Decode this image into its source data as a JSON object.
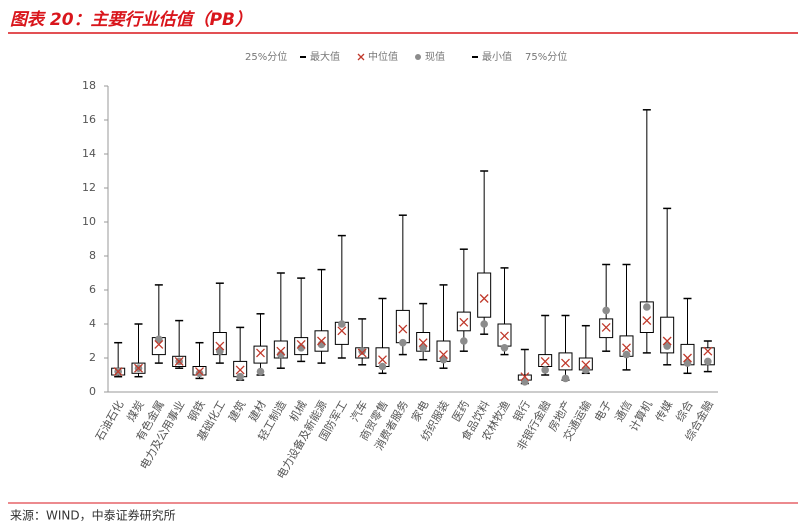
{
  "chart_data": {
    "type": "box",
    "title": "图表 20：主要行业估值（PB）",
    "source": "来源：WIND，中泰证券研究所",
    "categories": [
      "石油石化",
      "煤炭",
      "有色金属",
      "电力及公用事业",
      "钢铁",
      "基础化工",
      "建筑",
      "建材",
      "轻工制造",
      "机械",
      "电力设备及新能源",
      "国防军工",
      "汽车",
      "商贸零售",
      "消费者服务",
      "家电",
      "纺织服装",
      "医药",
      "食品饮料",
      "农林牧渔",
      "银行",
      "非银行金融",
      "房地产",
      "交通运输",
      "电子",
      "通信",
      "计算机",
      "传媒",
      "综合",
      "综合金融"
    ],
    "series": [
      {
        "name": "25%分位",
        "color": "#000000",
        "values": [
          1.0,
          1.1,
          2.2,
          1.5,
          1.0,
          2.2,
          0.9,
          1.7,
          2.0,
          2.2,
          2.4,
          2.8,
          2.0,
          1.5,
          2.9,
          2.4,
          1.8,
          3.6,
          4.4,
          2.7,
          0.7,
          1.5,
          1.3,
          1.3,
          3.2,
          2.1,
          3.5,
          2.3,
          1.6,
          1.6
        ]
      },
      {
        "name": "最大值",
        "color": "#000000",
        "values": [
          2.9,
          4.0,
          6.3,
          4.2,
          2.9,
          6.4,
          3.8,
          4.6,
          7.0,
          6.7,
          7.2,
          9.2,
          4.3,
          5.5,
          10.4,
          5.2,
          6.3,
          8.4,
          13.0,
          7.3,
          2.5,
          4.5,
          4.5,
          3.9,
          7.5,
          7.5,
          16.6,
          10.8,
          5.5,
          3.0
        ]
      },
      {
        "name": "中位值",
        "color": "#c0392b",
        "values": [
          1.2,
          1.4,
          2.8,
          1.8,
          1.2,
          2.7,
          1.3,
          2.3,
          2.4,
          2.8,
          3.0,
          3.6,
          2.3,
          1.9,
          3.7,
          2.9,
          2.2,
          4.1,
          5.5,
          3.3,
          0.9,
          1.8,
          1.7,
          1.6,
          3.8,
          2.6,
          4.2,
          3.0,
          2.0,
          2.4
        ]
      },
      {
        "name": "现值",
        "color": "#8c8c8c",
        "values": [
          1.2,
          1.4,
          3.1,
          1.8,
          1.1,
          2.4,
          0.9,
          1.2,
          2.2,
          2.6,
          2.8,
          4.0,
          2.4,
          1.5,
          2.9,
          2.6,
          1.9,
          3.0,
          4.0,
          2.6,
          0.6,
          1.3,
          0.8,
          1.3,
          4.8,
          2.2,
          5.0,
          2.7,
          1.7,
          1.8
        ]
      },
      {
        "name": "最小值",
        "color": "#000000",
        "values": [
          0.9,
          0.9,
          1.7,
          1.4,
          0.8,
          1.7,
          0.7,
          1.0,
          1.4,
          1.8,
          1.7,
          2.0,
          1.6,
          1.1,
          2.2,
          1.9,
          1.4,
          2.4,
          3.4,
          2.2,
          0.5,
          1.0,
          0.7,
          1.1,
          2.4,
          1.3,
          2.3,
          1.6,
          1.1,
          1.2
        ]
      },
      {
        "name": "75%分位",
        "color": "#000000",
        "values": [
          1.4,
          1.7,
          3.2,
          2.1,
          1.5,
          3.5,
          1.8,
          2.7,
          3.0,
          3.2,
          3.6,
          4.1,
          2.6,
          2.6,
          4.8,
          3.5,
          3.0,
          4.7,
          7.0,
          4.0,
          1.0,
          2.2,
          2.3,
          2.0,
          4.3,
          3.3,
          5.3,
          4.4,
          2.8,
          2.6
        ]
      }
    ],
    "ylim": [
      0,
      18
    ],
    "yticks": [
      0,
      2,
      4,
      6,
      8,
      10,
      12,
      14,
      16,
      18
    ]
  }
}
